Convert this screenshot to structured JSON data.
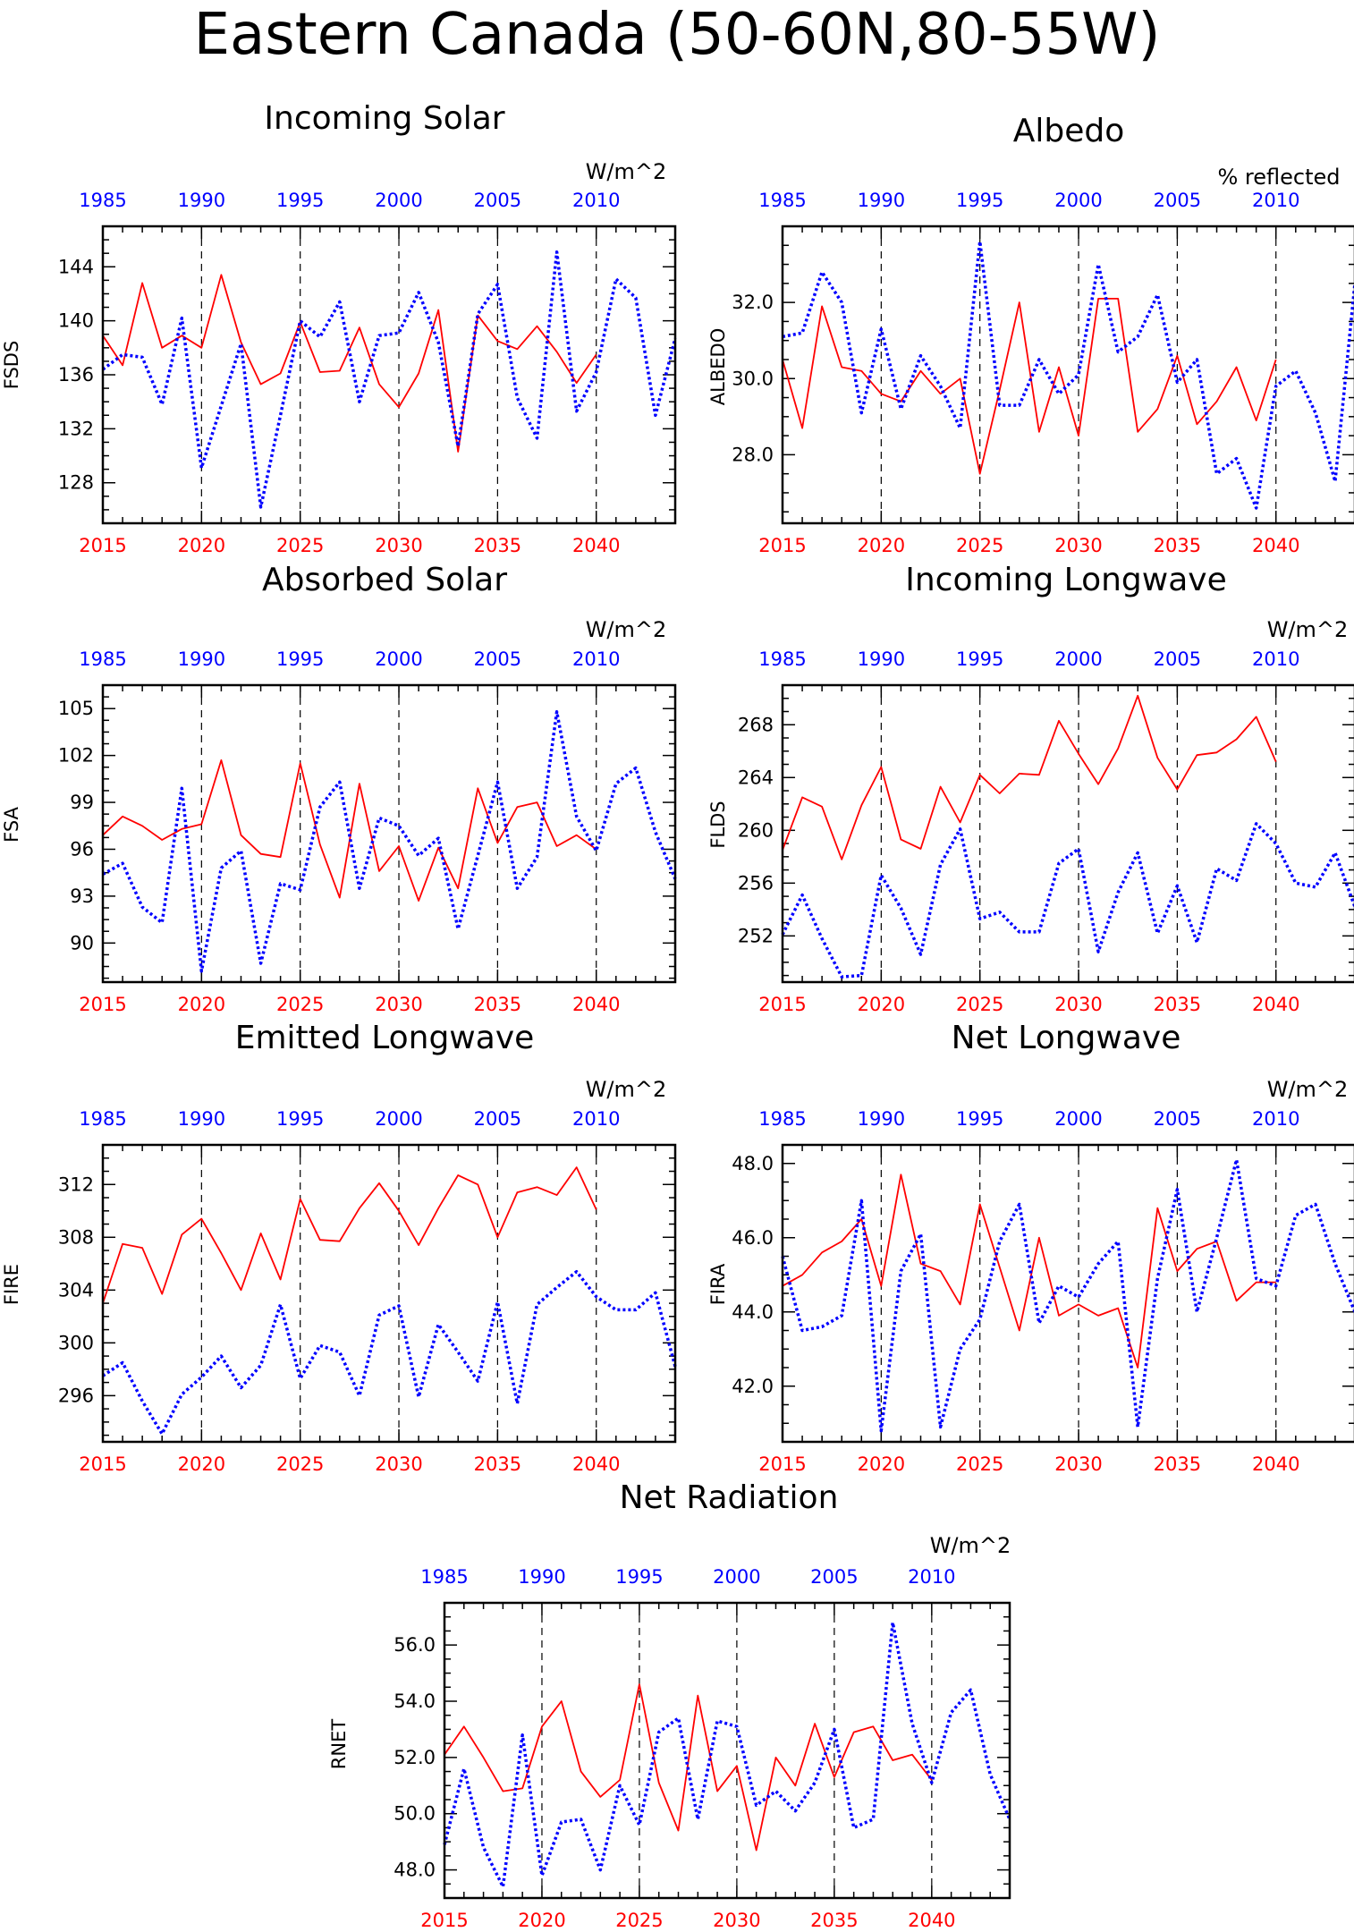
{
  "figure_title": "Eastern Canada (50-60N,80-55W)",
  "colors": {
    "future": "#ff0000",
    "historical": "#0000ff",
    "axis": "#000000"
  },
  "chart_data": [
    {
      "type": "line",
      "title": "Incoming Solar",
      "ylabel": "FSDS",
      "units": "W/m^2",
      "ylim": [
        125,
        147
      ],
      "yticks": [
        128,
        132,
        136,
        140,
        144
      ],
      "ytick_labels": [
        "128",
        "132",
        "136",
        "140",
        "144"
      ],
      "x_bottom_ticks": [
        "2015",
        "2020",
        "2025",
        "2030",
        "2035",
        "2040"
      ],
      "x_top_ticks": [
        "1985",
        "1990",
        "1995",
        "2000",
        "2005",
        "2010"
      ],
      "series": [
        {
          "x_start": 2015,
          "values": [
            138.9,
            136.7,
            142.8,
            138.0,
            138.9,
            138.0,
            143.4,
            138.4,
            135.3,
            136.1,
            139.9,
            136.2,
            136.3,
            139.5,
            135.3,
            133.6,
            136.1,
            140.8,
            130.3,
            140.4,
            138.5,
            137.9,
            139.6,
            137.7,
            135.4,
            137.5
          ]
        },
        {
          "x_start": 1985,
          "values": [
            136.4,
            137.5,
            137.3,
            133.8,
            140.2,
            129.1,
            133.7,
            138.3,
            126.2,
            133.0,
            140.0,
            138.8,
            141.4,
            134.0,
            138.9,
            139.1,
            142.1,
            138.4,
            130.7,
            140.5,
            142.7,
            134.3,
            131.3,
            145.1,
            133.3,
            136.2,
            143.1,
            141.7,
            133.0,
            138.7
          ]
        }
      ]
    },
    {
      "type": "line",
      "title": "Albedo",
      "ylabel": "ALBEDO",
      "units": "% reflected",
      "ylim": [
        26.2,
        34.0
      ],
      "yticks": [
        28.0,
        30.0,
        32.0
      ],
      "ytick_labels": [
        "28.0",
        "30.0",
        "32.0"
      ],
      "x_bottom_ticks": [
        "2015",
        "2020",
        "2025",
        "2030",
        "2035",
        "2040"
      ],
      "x_top_ticks": [
        "1985",
        "1990",
        "1995",
        "2000",
        "2005",
        "2010"
      ],
      "series": [
        {
          "x_start": 2015,
          "values": [
            30.5,
            28.7,
            31.9,
            30.3,
            30.2,
            29.6,
            29.4,
            30.2,
            29.6,
            30.0,
            27.5,
            29.7,
            32.0,
            28.6,
            30.3,
            28.5,
            32.1,
            32.1,
            28.6,
            29.2,
            30.6,
            28.8,
            29.4,
            30.3,
            28.9,
            30.5
          ]
        },
        {
          "x_start": 1985,
          "values": [
            31.1,
            31.2,
            32.8,
            32.0,
            29.1,
            31.3,
            29.2,
            30.6,
            29.8,
            28.7,
            33.6,
            29.3,
            29.3,
            30.5,
            29.6,
            30.1,
            33.0,
            30.7,
            31.1,
            32.2,
            29.9,
            30.5,
            27.5,
            27.9,
            26.6,
            29.8,
            30.2,
            29.1,
            27.3,
            32.5
          ]
        }
      ]
    },
    {
      "type": "line",
      "title": "Absorbed Solar",
      "ylabel": "FSA",
      "units": "W/m^2",
      "ylim": [
        87.5,
        106.5
      ],
      "yticks": [
        90,
        93,
        96,
        99,
        102,
        105
      ],
      "ytick_labels": [
        "90",
        "93",
        "96",
        "99",
        "102",
        "105"
      ],
      "x_bottom_ticks": [
        "2015",
        "2020",
        "2025",
        "2030",
        "2035",
        "2040"
      ],
      "x_top_ticks": [
        "1985",
        "1990",
        "1995",
        "2000",
        "2005",
        "2010"
      ],
      "series": [
        {
          "x_start": 2015,
          "values": [
            96.9,
            98.1,
            97.5,
            96.6,
            97.3,
            97.6,
            101.7,
            96.9,
            95.7,
            95.5,
            101.5,
            96.3,
            92.9,
            100.2,
            94.6,
            96.2,
            92.7,
            96.1,
            93.5,
            99.9,
            96.4,
            98.7,
            99.0,
            96.2,
            96.9,
            96.0
          ]
        },
        {
          "x_start": 1985,
          "values": [
            94.4,
            95.1,
            92.3,
            91.3,
            99.9,
            88.2,
            94.8,
            95.9,
            88.7,
            93.8,
            93.4,
            98.7,
            100.3,
            93.5,
            98.0,
            97.5,
            95.6,
            96.7,
            90.9,
            95.6,
            100.3,
            93.5,
            95.5,
            104.8,
            98.1,
            95.9,
            100.2,
            101.2,
            97.1,
            94.1
          ]
        }
      ]
    },
    {
      "type": "line",
      "title": "Incoming Longwave",
      "ylabel": "FLDS",
      "units": "W/m^2",
      "ylim": [
        248.5,
        271.0
      ],
      "yticks": [
        252,
        256,
        260,
        264,
        268
      ],
      "ytick_labels": [
        "252",
        "256",
        "260",
        "264",
        "268"
      ],
      "x_bottom_ticks": [
        "2015",
        "2020",
        "2025",
        "2030",
        "2035",
        "2040"
      ],
      "x_top_ticks": [
        "1985",
        "1990",
        "1995",
        "2000",
        "2005",
        "2010"
      ],
      "series": [
        {
          "x_start": 2015,
          "values": [
            258.5,
            262.5,
            261.8,
            257.8,
            261.9,
            264.8,
            259.3,
            258.6,
            263.3,
            260.6,
            264.2,
            262.8,
            264.3,
            264.2,
            268.3,
            265.8,
            263.5,
            266.2,
            270.2,
            265.5,
            263.1,
            265.7,
            265.9,
            266.9,
            268.6,
            265.2
          ]
        },
        {
          "x_start": 1985,
          "values": [
            252.1,
            255.1,
            251.8,
            248.9,
            249.0,
            256.6,
            254.1,
            250.6,
            257.4,
            260.1,
            253.3,
            253.8,
            252.3,
            252.3,
            257.5,
            258.6,
            250.8,
            255.3,
            258.3,
            252.2,
            255.8,
            251.5,
            257.1,
            256.2,
            260.5,
            259.0,
            256.0,
            255.7,
            258.3,
            254.2
          ]
        }
      ]
    },
    {
      "type": "line",
      "title": "Emitted Longwave",
      "ylabel": "FIRE",
      "units": "W/m^2",
      "ylim": [
        292.5,
        315.0
      ],
      "yticks": [
        296,
        300,
        304,
        308,
        312
      ],
      "ytick_labels": [
        "296",
        "300",
        "304",
        "308",
        "312"
      ],
      "x_bottom_ticks": [
        "2015",
        "2020",
        "2025",
        "2030",
        "2035",
        "2040"
      ],
      "x_top_ticks": [
        "1985",
        "1990",
        "1995",
        "2000",
        "2005",
        "2010"
      ],
      "series": [
        {
          "x_start": 2015,
          "values": [
            303.0,
            307.5,
            307.2,
            303.7,
            308.2,
            309.4,
            306.8,
            304.0,
            308.3,
            304.8,
            310.9,
            307.8,
            307.7,
            310.2,
            312.1,
            310.0,
            307.4,
            310.2,
            312.7,
            312.0,
            308.0,
            311.4,
            311.8,
            311.2,
            313.3,
            310.1
          ]
        },
        {
          "x_start": 1985,
          "values": [
            297.5,
            298.5,
            295.6,
            293.1,
            296.1,
            297.4,
            299.0,
            296.6,
            298.3,
            302.9,
            297.3,
            299.8,
            299.3,
            296.0,
            302.1,
            302.8,
            295.9,
            301.4,
            299.3,
            297.1,
            303.1,
            295.4,
            302.9,
            304.2,
            305.4,
            303.5,
            302.5,
            302.5,
            303.8,
            298.2
          ]
        }
      ]
    },
    {
      "type": "line",
      "title": "Net Longwave",
      "ylabel": "FIRA",
      "units": "W/m^2",
      "ylim": [
        40.5,
        48.5
      ],
      "yticks": [
        42.0,
        44.0,
        46.0,
        48.0
      ],
      "ytick_labels": [
        "42.0",
        "44.0",
        "46.0",
        "48.0"
      ],
      "x_bottom_ticks": [
        "2015",
        "2020",
        "2025",
        "2030",
        "2035",
        "2040"
      ],
      "x_top_ticks": [
        "1985",
        "1990",
        "1995",
        "2000",
        "2005",
        "2010"
      ],
      "series": [
        {
          "x_start": 2015,
          "values": [
            44.7,
            45.0,
            45.6,
            45.9,
            46.5,
            44.7,
            47.7,
            45.3,
            45.1,
            44.2,
            46.9,
            45.2,
            43.5,
            46.0,
            43.9,
            44.2,
            43.9,
            44.1,
            42.5,
            46.8,
            45.1,
            45.7,
            45.9,
            44.3,
            44.8,
            44.8
          ]
        },
        {
          "x_start": 1985,
          "values": [
            45.5,
            43.5,
            43.6,
            43.9,
            47.0,
            40.8,
            45.1,
            46.1,
            40.9,
            43.0,
            43.8,
            45.9,
            46.9,
            43.7,
            44.7,
            44.4,
            45.3,
            45.9,
            40.9,
            44.9,
            47.3,
            44.0,
            46.0,
            48.1,
            44.9,
            44.7,
            46.6,
            46.9,
            45.3,
            44.0
          ]
        }
      ]
    },
    {
      "type": "line",
      "title": "Net Radiation",
      "ylabel": "RNET",
      "units": "W/m^2",
      "ylim": [
        47.0,
        57.5
      ],
      "yticks": [
        48.0,
        50.0,
        52.0,
        54.0,
        56.0
      ],
      "ytick_labels": [
        "48.0",
        "50.0",
        "52.0",
        "54.0",
        "56.0"
      ],
      "x_bottom_ticks": [
        "2015",
        "2020",
        "2025",
        "2030",
        "2035",
        "2040"
      ],
      "x_top_ticks": [
        "1985",
        "1990",
        "1995",
        "2000",
        "2005",
        "2010"
      ],
      "series": [
        {
          "x_start": 2015,
          "values": [
            52.1,
            53.1,
            52.0,
            50.8,
            50.9,
            53.1,
            54.0,
            51.5,
            50.6,
            51.2,
            54.6,
            51.1,
            49.4,
            54.2,
            50.8,
            51.7,
            48.7,
            52.0,
            51.0,
            53.2,
            51.3,
            52.9,
            53.1,
            51.9,
            52.1,
            51.2
          ]
        },
        {
          "x_start": 1985,
          "values": [
            48.9,
            51.6,
            48.8,
            47.4,
            52.8,
            47.8,
            49.7,
            49.8,
            48.0,
            51.0,
            49.6,
            52.9,
            53.4,
            49.8,
            53.3,
            53.1,
            50.3,
            50.8,
            50.1,
            51.1,
            53.0,
            49.5,
            49.8,
            56.8,
            53.2,
            51.1,
            53.6,
            54.4,
            51.4,
            49.8
          ]
        }
      ]
    }
  ]
}
